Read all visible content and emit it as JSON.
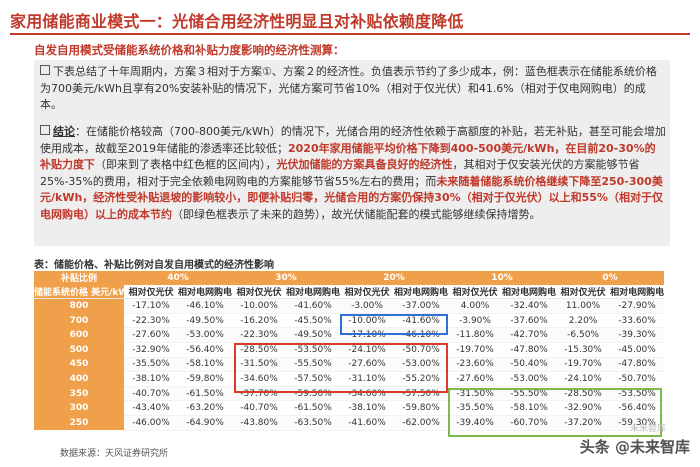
{
  "header": {
    "title": "家用储能商业模式一：光储合用经济性明显且对补贴依赖度降低",
    "subtitle": "自发自用模式受储能系统价格和补贴力度影响的经济性测算："
  },
  "para1": {
    "text": "下表总结了十年周期内，方案３相对于方案①、方案２的经济性。负值表示节约了多少成本，例：蓝色框表示在储能系统价格为700美元/kWh且享有20%安装补贴的情况下，光储方案可节省10%（相对于仅光伏）和41.6%（相对于仅电网购电）的成本。"
  },
  "para2": {
    "keyword": "结论",
    "t1": "：在储能价格较高（700-800美元/kWh）的情况下，光储合用的经济性依赖于高额度的补贴，若无补贴，甚至可能会增加使用成本，故截至2019年储能的渗透率还比较低；",
    "r1": "2020年家用储能平均价格下降到400-500美元/kWh，在目前20-30%的补贴力度下",
    "t2": "（即来到了表格中红色框的区间内），",
    "r2": "光伏加储能的方案具备良好的经济性",
    "t3": "，其相对于仅安装光伏的方案能够节省25%-35%的费用，相对于完全依赖电网购电的方案能够节省55%左右的费用；而",
    "r3": "未来随着储能系统价格继续下降至250-300美元/kWh，经济性受补贴退坡的影响较小，即便补贴归零，光储合用的方案仍保持30%（相对于仅光伏）以上和55%（相对于仅电网购电）以上的成本节约",
    "t4": "（即绿色框表示了未来的趋势），故光伏储能配套的模式能够继续保持增势。"
  },
  "table": {
    "caption": "表：储能价格、补贴比例对自发自用模式的经济性影响",
    "subsidy_label": "补贴比例",
    "price_label": "储能系统价格 美元/kWh",
    "subsidies": [
      "40%",
      "30%",
      "20%",
      "10%",
      "0%"
    ],
    "col_pv": "相对仅光伏",
    "col_grid": "相对电网购电",
    "rows": [
      {
        "price": "800",
        "values": [
          "-17.10%",
          "-46.10%",
          "-10.00%",
          "-41.60%",
          "-3.00%",
          "-37.00%",
          "4.00%",
          "-32.40%",
          "11.00%",
          "-27.90%"
        ]
      },
      {
        "price": "700",
        "values": [
          "-22.30%",
          "-49.50%",
          "-16.20%",
          "-45.50%",
          "-10.00%",
          "-41.60%",
          "-3.90%",
          "-37.60%",
          "2.20%",
          "-33.60%"
        ]
      },
      {
        "price": "600",
        "values": [
          "-27.60%",
          "-53.00%",
          "-22.30%",
          "-49.50%",
          "-17.10%",
          "-46.10%",
          "-11.80%",
          "-42.70%",
          "-6.50%",
          "-39.30%"
        ]
      },
      {
        "price": "500",
        "values": [
          "-32.90%",
          "-56.40%",
          "-28.50%",
          "-53.50%",
          "-24.10%",
          "-50.70%",
          "-19.70%",
          "-47.80%",
          "-15.30%",
          "-45.00%"
        ]
      },
      {
        "price": "450",
        "values": [
          "-35.50%",
          "-58.10%",
          "-31.50%",
          "-55.50%",
          "-27.60%",
          "-53.00%",
          "-23.60%",
          "-50.40%",
          "-19.70%",
          "-47.80%"
        ]
      },
      {
        "price": "400",
        "values": [
          "-38.10%",
          "-59.80%",
          "-34.60%",
          "-57.50%",
          "-31.10%",
          "-55.20%",
          "-27.60%",
          "-53.00%",
          "-24.10%",
          "-50.70%"
        ]
      },
      {
        "price": "350",
        "values": [
          "-40.70%",
          "-61.50%",
          "-37.70%",
          "-59.50%",
          "-34.60%",
          "-57.50%",
          "-31.50%",
          "-55.50%",
          "-28.50%",
          "-53.50%"
        ]
      },
      {
        "price": "300",
        "values": [
          "-43.40%",
          "-63.20%",
          "-40.70%",
          "-61.50%",
          "-38.10%",
          "-59.80%",
          "-35.50%",
          "-58.10%",
          "-32.90%",
          "-56.40%"
        ]
      },
      {
        "price": "250",
        "values": [
          "-46.00%",
          "-64.90%",
          "-43.80%",
          "-63.50%",
          "-41.60%",
          "-62.00%",
          "-39.40%",
          "-60.70%",
          "-37.20%",
          "-59.30%"
        ]
      }
    ]
  },
  "footer": {
    "source": "数据来源：天风证券研究所",
    "watermark": "头条 @未来智库",
    "watermark_small": "未来智库"
  }
}
